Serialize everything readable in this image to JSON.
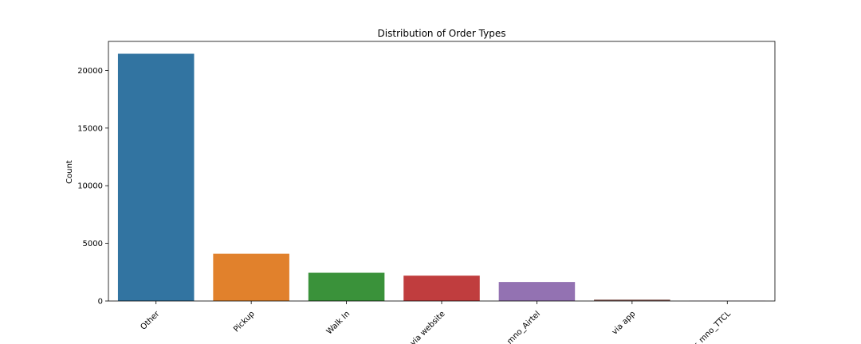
{
  "chart_data": {
    "type": "bar",
    "title": "Distribution of Order Types",
    "xlabel": "",
    "ylabel": "Count",
    "categories": [
      "Other",
      "Pickup",
      "Walk In",
      "r via website",
      "- mno_Airtel",
      "via app",
      "r_mno_TTCL"
    ],
    "values": [
      21450,
      4100,
      2450,
      2200,
      1650,
      120,
      20
    ],
    "ylim": [
      0,
      22520
    ],
    "yticks": [
      0,
      5000,
      10000,
      15000,
      20000
    ],
    "ytick_labels": [
      "0",
      "5000",
      "10000",
      "15000",
      "20000"
    ],
    "grid": false,
    "colors": [
      "#3274a1",
      "#e1812c",
      "#3a923a",
      "#c03d3e",
      "#9372b2",
      "#845b53",
      "#d684bd"
    ]
  }
}
